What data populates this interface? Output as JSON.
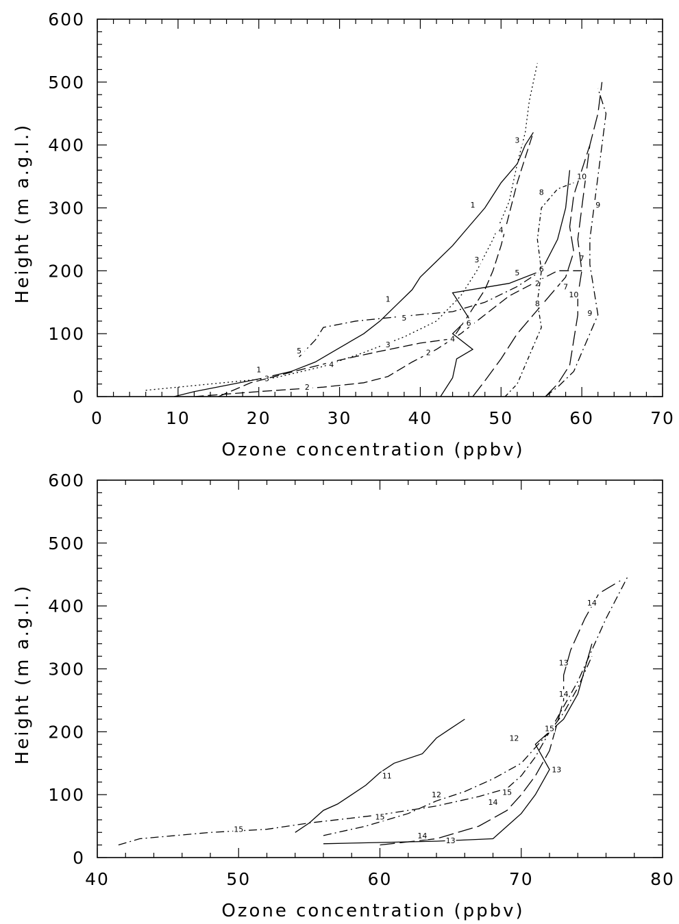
{
  "chart_data": [
    {
      "type": "line",
      "xlabel": "Ozone concentration (ppbv)",
      "ylabel": "Height (m a.g.l.)",
      "xlim": [
        0,
        70
      ],
      "ylim": [
        0,
        600
      ],
      "x_ticks": [
        "0",
        "10",
        "20",
        "30",
        "40",
        "50",
        "60",
        "70"
      ],
      "y_ticks": [
        "0",
        "100",
        "200",
        "300",
        "400",
        "500",
        "600"
      ],
      "x_tick_values": [
        0,
        10,
        20,
        30,
        40,
        50,
        60,
        70
      ],
      "y_tick_values": [
        0,
        100,
        200,
        300,
        400,
        500,
        600
      ],
      "grid": false,
      "series": [
        {
          "name": "1",
          "dash": "solid",
          "label_at": [
            [
              20,
              43
            ],
            [
              36,
              155
            ],
            [
              46.5,
              305
            ]
          ],
          "points": [
            [
              9.5,
              0
            ],
            [
              12,
              8
            ],
            [
              16,
              18
            ],
            [
              20,
              28
            ],
            [
              24,
              40
            ],
            [
              27,
              55
            ],
            [
              29,
              70
            ],
            [
              31,
              85
            ],
            [
              33,
              100
            ],
            [
              35,
              120
            ],
            [
              37,
              145
            ],
            [
              39,
              170
            ],
            [
              40,
              190
            ],
            [
              42,
              215
            ],
            [
              44,
              240
            ],
            [
              46,
              270
            ],
            [
              48,
              300
            ],
            [
              50,
              340
            ],
            [
              52,
              370
            ],
            [
              53,
              400
            ],
            [
              54,
              420
            ]
          ]
        },
        {
          "name": "2",
          "dash": "dashed",
          "label_at": [
            [
              26,
              15
            ],
            [
              41,
              70
            ],
            [
              54.5,
              180
            ]
          ],
          "points": [
            [
              12,
              0
            ],
            [
              20,
              8
            ],
            [
              28,
              15
            ],
            [
              33,
              22
            ],
            [
              36,
              32
            ],
            [
              39,
              55
            ],
            [
              42,
              75
            ],
            [
              45,
              100
            ],
            [
              48,
              130
            ],
            [
              51,
              160
            ],
            [
              54,
              180
            ],
            [
              57,
              200
            ],
            [
              60,
              200
            ]
          ]
        },
        {
          "name": "3",
          "dash": "dotted",
          "label_at": [
            [
              21,
              29
            ],
            [
              36,
              83
            ],
            [
              47,
              218
            ],
            [
              52,
              408
            ]
          ],
          "points": [
            [
              6,
              10
            ],
            [
              14,
              20
            ],
            [
              22,
              30
            ],
            [
              28,
              48
            ],
            [
              33,
              70
            ],
            [
              38,
              95
            ],
            [
              42,
              120
            ],
            [
              45,
              160
            ],
            [
              47,
              200
            ],
            [
              49,
              250
            ],
            [
              51,
              310
            ],
            [
              52,
              370
            ],
            [
              53,
              420
            ],
            [
              53.5,
              470
            ],
            [
              54,
              500
            ],
            [
              54.5,
              530
            ]
          ]
        },
        {
          "name": "4",
          "dash": "dashed",
          "label_at": [
            [
              29,
              51
            ],
            [
              44,
              92
            ],
            [
              50,
              265
            ]
          ],
          "points": [
            [
              15,
              0
            ],
            [
              19,
              22
            ],
            [
              25,
              42
            ],
            [
              30,
              58
            ],
            [
              35,
              72
            ],
            [
              40,
              85
            ],
            [
              44,
              92
            ],
            [
              46,
              130
            ],
            [
              48,
              170
            ],
            [
              49,
              200
            ],
            [
              50,
              240
            ],
            [
              51,
              290
            ],
            [
              52,
              340
            ],
            [
              53,
              380
            ],
            [
              54,
              420
            ]
          ]
        },
        {
          "name": "5",
          "dash": "dash-dot",
          "label_at": [
            [
              25,
              73
            ],
            [
              38,
              125
            ],
            [
              52,
              197
            ]
          ],
          "points": [
            [
              25,
              63
            ],
            [
              27,
              90
            ],
            [
              28,
              110
            ],
            [
              32,
              120
            ],
            [
              38,
              128
            ],
            [
              44,
              135
            ],
            [
              48,
              150
            ],
            [
              52,
              175
            ],
            [
              55,
              200
            ]
          ]
        },
        {
          "name": "6",
          "dash": "solid",
          "label_at": [
            [
              46,
              117
            ],
            [
              55,
              203
            ]
          ],
          "points": [
            [
              42.5,
              0
            ],
            [
              44,
              30
            ],
            [
              44.5,
              60
            ],
            [
              46.5,
              75
            ],
            [
              44,
              100
            ],
            [
              46,
              125
            ],
            [
              44,
              165
            ],
            [
              51,
              180
            ],
            [
              55,
              200
            ],
            [
              57,
              250
            ],
            [
              58,
              300
            ],
            [
              58.5,
              360
            ]
          ]
        },
        {
          "name": "7",
          "dash": "long-dashed",
          "label_at": [
            [
              58,
              175
            ],
            [
              60,
              220
            ]
          ],
          "points": [
            [
              46.5,
              0
            ],
            [
              48,
              25
            ],
            [
              50,
              60
            ],
            [
              52,
              100
            ],
            [
              54,
              130
            ],
            [
              56,
              160
            ],
            [
              58,
              190
            ],
            [
              59,
              230
            ],
            [
              58.5,
              270
            ],
            [
              59,
              320
            ],
            [
              60,
              360
            ],
            [
              61,
              400
            ]
          ]
        },
        {
          "name": "8",
          "dash": "short-dash-dot",
          "label_at": [
            [
              54.5,
              148
            ],
            [
              55,
              325
            ]
          ],
          "points": [
            [
              50.5,
              0
            ],
            [
              52,
              20
            ],
            [
              53,
              50
            ],
            [
              54,
              80
            ],
            [
              55,
              110
            ],
            [
              54.5,
              150
            ],
            [
              55,
              200
            ],
            [
              54.5,
              250
            ],
            [
              55,
              300
            ],
            [
              57,
              330
            ],
            [
              59,
              340
            ]
          ]
        },
        {
          "name": "9",
          "dash": "dash-dot",
          "label_at": [
            [
              61,
              133
            ],
            [
              62,
              305
            ]
          ],
          "points": [
            [
              55.5,
              0
            ],
            [
              57,
              15
            ],
            [
              59,
              40
            ],
            [
              60,
              70
            ],
            [
              61,
              100
            ],
            [
              62,
              130
            ],
            [
              61.5,
              170
            ],
            [
              61,
              210
            ],
            [
              61,
              250
            ],
            [
              61.5,
              300
            ],
            [
              62,
              350
            ],
            [
              62.5,
              400
            ],
            [
              63,
              450
            ],
            [
              62,
              490
            ]
          ]
        },
        {
          "name": "10",
          "dash": "long-dashed",
          "label_at": [
            [
              59,
              162
            ],
            [
              60,
              350
            ]
          ],
          "points": [
            [
              55.5,
              0
            ],
            [
              57,
              20
            ],
            [
              58.5,
              50
            ],
            [
              59,
              90
            ],
            [
              59.5,
              130
            ],
            [
              59.5,
              160
            ],
            [
              60,
              200
            ],
            [
              59.5,
              250
            ],
            [
              60,
              300
            ],
            [
              60.5,
              350
            ],
            [
              61,
              400
            ],
            [
              62,
              450
            ],
            [
              62.5,
              500
            ]
          ]
        }
      ]
    },
    {
      "type": "line",
      "xlabel": "Ozone concentration (ppbv)",
      "ylabel": "Height (m a.g.l.)",
      "xlim": [
        40,
        80
      ],
      "ylim": [
        0,
        600
      ],
      "x_ticks": [
        "40",
        "50",
        "60",
        "70",
        "80"
      ],
      "y_ticks": [
        "0",
        "100",
        "200",
        "300",
        "400",
        "500",
        "600"
      ],
      "x_tick_values": [
        40,
        50,
        60,
        70,
        80
      ],
      "y_tick_values": [
        0,
        100,
        200,
        300,
        400,
        500,
        600
      ],
      "grid": false,
      "series": [
        {
          "name": "11",
          "dash": "solid",
          "label_at": [
            [
              60.5,
              130
            ]
          ],
          "points": [
            [
              54,
              40
            ],
            [
              55,
              55
            ],
            [
              56,
              75
            ],
            [
              57,
              85
            ],
            [
              58,
              100
            ],
            [
              59,
              115
            ],
            [
              60,
              135
            ],
            [
              61,
              150
            ],
            [
              63,
              165
            ],
            [
              64,
              190
            ],
            [
              65,
              205
            ],
            [
              66,
              220
            ]
          ]
        },
        {
          "name": "12",
          "dash": "dash-dot",
          "label_at": [
            [
              64,
              100
            ],
            [
              69.5,
              190
            ]
          ],
          "points": [
            [
              56,
              35
            ],
            [
              59,
              50
            ],
            [
              62,
              70
            ],
            [
              64,
              90
            ],
            [
              66,
              105
            ],
            [
              68,
              125
            ],
            [
              70,
              150
            ],
            [
              71,
              175
            ],
            [
              72,
              200
            ],
            [
              73,
              230
            ],
            [
              74,
              270
            ],
            [
              75,
              320
            ]
          ]
        },
        {
          "name": "13",
          "dash": "solid",
          "label_at": [
            [
              65,
              27
            ],
            [
              72.5,
              140
            ],
            [
              73,
              310
            ]
          ],
          "points": [
            [
              56,
              22
            ],
            [
              60,
              24
            ],
            [
              64,
              26
            ],
            [
              68,
              30
            ],
            [
              69,
              50
            ],
            [
              70,
              70
            ],
            [
              71,
              100
            ],
            [
              72,
              140
            ],
            [
              71,
              180
            ],
            [
              73,
              220
            ],
            [
              74,
              260
            ],
            [
              74.5,
              300
            ],
            [
              75,
              340
            ]
          ]
        },
        {
          "name": "14",
          "dash": "long-dashed",
          "label_at": [
            [
              63,
              35
            ],
            [
              68,
              88
            ],
            [
              73,
              260
            ],
            [
              75,
              405
            ]
          ],
          "points": [
            [
              60,
              20
            ],
            [
              64,
              30
            ],
            [
              67,
              50
            ],
            [
              69,
              75
            ],
            [
              70,
              100
            ],
            [
              71,
              130
            ],
            [
              72,
              170
            ],
            [
              72.5,
              210
            ],
            [
              73,
              250
            ],
            [
              73,
              290
            ],
            [
              73.5,
              330
            ],
            [
              74.5,
              380
            ],
            [
              75.5,
              420
            ],
            [
              77,
              440
            ]
          ]
        },
        {
          "name": "15",
          "dash": "dash-dot",
          "label_at": [
            [
              50,
              45
            ],
            [
              60,
              65
            ],
            [
              69,
              104
            ],
            [
              72,
              205
            ]
          ],
          "points": [
            [
              41.5,
              20
            ],
            [
              43,
              30
            ],
            [
              48,
              40
            ],
            [
              52,
              45
            ],
            [
              55,
              55
            ],
            [
              60,
              68
            ],
            [
              64,
              82
            ],
            [
              67,
              97
            ],
            [
              69,
              110
            ],
            [
              70,
              130
            ],
            [
              71,
              160
            ],
            [
              72,
              200
            ],
            [
              73,
              240
            ],
            [
              74,
              280
            ],
            [
              75,
              330
            ],
            [
              76,
              380
            ],
            [
              77.5,
              445
            ]
          ]
        }
      ]
    }
  ]
}
